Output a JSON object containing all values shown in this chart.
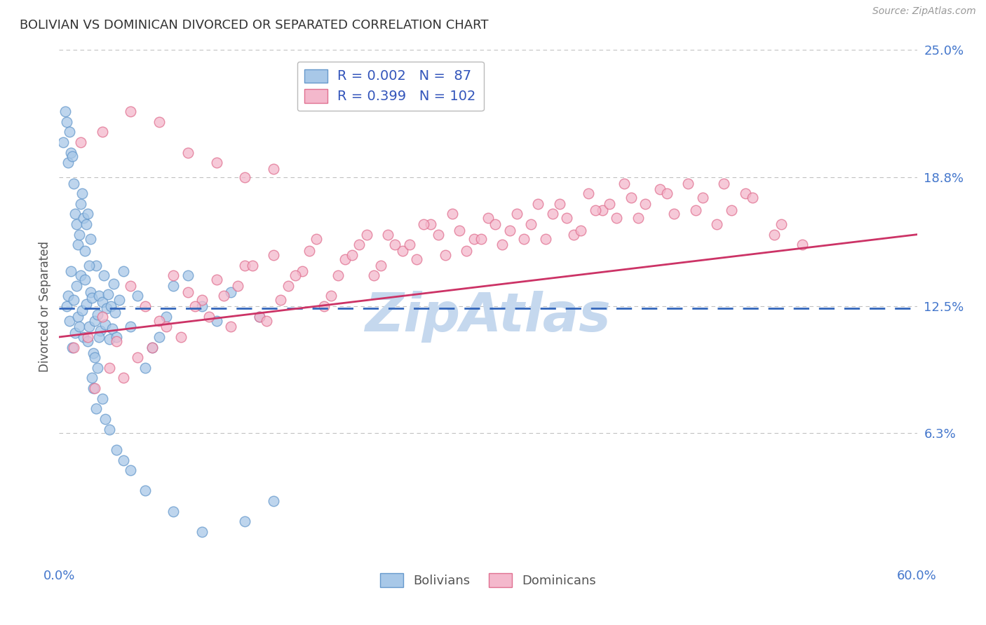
{
  "title": "BOLIVIAN VS DOMINICAN DIVORCED OR SEPARATED CORRELATION CHART",
  "source": "Source: ZipAtlas.com",
  "ylabel": "Divorced or Separated",
  "x_min": 0.0,
  "x_max": 60.0,
  "y_min": 0.0,
  "y_max": 25.0,
  "y_ticks": [
    6.3,
    12.5,
    18.8,
    25.0
  ],
  "bolivian_R": 0.002,
  "bolivian_N": 87,
  "dominican_R": 0.399,
  "dominican_N": 102,
  "blue_fill": "#a8c8e8",
  "blue_edge": "#6699cc",
  "blue_line": "#3366bb",
  "pink_fill": "#f4b8cc",
  "pink_edge": "#e07090",
  "pink_line": "#cc3366",
  "legend_text_color": "#3355bb",
  "title_color": "#333333",
  "axis_label_color": "#555555",
  "tick_color": "#4477cc",
  "grid_color": "#bbbbbb",
  "watermark_color": "#c5d8ee",
  "background_color": "#ffffff",
  "bol_x": [
    0.5,
    0.6,
    0.7,
    0.8,
    0.9,
    1.0,
    1.1,
    1.2,
    1.3,
    1.4,
    1.5,
    1.6,
    1.7,
    1.8,
    1.9,
    2.0,
    2.1,
    2.2,
    2.3,
    2.4,
    2.5,
    2.6,
    2.7,
    2.8,
    2.9,
    3.0,
    3.1,
    3.2,
    3.3,
    3.4,
    3.5,
    3.6,
    3.7,
    3.8,
    3.9,
    4.0,
    4.2,
    4.5,
    5.0,
    5.5,
    6.0,
    6.5,
    7.0,
    7.5,
    8.0,
    9.0,
    10.0,
    11.0,
    12.0,
    14.0,
    0.3,
    0.4,
    0.5,
    0.6,
    0.7,
    0.8,
    0.9,
    1.0,
    1.1,
    1.2,
    1.3,
    1.4,
    1.5,
    1.6,
    1.7,
    1.8,
    1.9,
    2.0,
    2.1,
    2.2,
    2.3,
    2.4,
    2.5,
    2.6,
    2.7,
    2.8,
    3.0,
    3.2,
    3.5,
    4.0,
    4.5,
    5.0,
    6.0,
    8.0,
    10.0,
    13.0,
    15.0
  ],
  "bol_y": [
    12.5,
    13.0,
    11.8,
    14.2,
    10.5,
    12.8,
    11.2,
    13.5,
    12.0,
    11.5,
    14.0,
    12.3,
    11.0,
    13.8,
    12.6,
    10.8,
    11.5,
    13.2,
    12.9,
    10.2,
    11.8,
    14.5,
    12.1,
    13.0,
    11.3,
    12.7,
    14.0,
    11.6,
    12.4,
    13.1,
    10.9,
    12.5,
    11.4,
    13.6,
    12.2,
    11.0,
    12.8,
    14.2,
    11.5,
    13.0,
    9.5,
    10.5,
    11.0,
    12.0,
    13.5,
    14.0,
    12.5,
    11.8,
    13.2,
    12.0,
    20.5,
    22.0,
    21.5,
    19.5,
    21.0,
    20.0,
    19.8,
    18.5,
    17.0,
    16.5,
    15.5,
    16.0,
    17.5,
    18.0,
    16.8,
    15.2,
    16.5,
    17.0,
    14.5,
    15.8,
    9.0,
    8.5,
    10.0,
    7.5,
    9.5,
    11.0,
    8.0,
    7.0,
    6.5,
    5.5,
    5.0,
    4.5,
    3.5,
    2.5,
    1.5,
    2.0,
    3.0
  ],
  "dom_x": [
    1.0,
    2.0,
    3.0,
    4.0,
    5.0,
    6.0,
    7.0,
    8.0,
    9.0,
    10.0,
    11.0,
    12.0,
    13.0,
    14.0,
    15.0,
    16.0,
    17.0,
    18.0,
    19.0,
    20.0,
    21.0,
    22.0,
    23.0,
    24.0,
    25.0,
    26.0,
    27.0,
    28.0,
    29.0,
    30.0,
    31.0,
    32.0,
    33.0,
    34.0,
    35.0,
    36.0,
    37.0,
    38.0,
    39.0,
    40.0,
    41.0,
    42.0,
    43.0,
    44.0,
    45.0,
    46.0,
    47.0,
    48.0,
    50.0,
    52.0,
    3.5,
    5.5,
    7.5,
    9.5,
    11.5,
    13.5,
    15.5,
    17.5,
    19.5,
    21.5,
    23.5,
    25.5,
    27.5,
    29.5,
    31.5,
    33.5,
    35.5,
    37.5,
    39.5,
    2.5,
    4.5,
    6.5,
    8.5,
    10.5,
    12.5,
    14.5,
    16.5,
    18.5,
    20.5,
    22.5,
    24.5,
    26.5,
    28.5,
    30.5,
    32.5,
    34.5,
    36.5,
    38.5,
    40.5,
    42.5,
    44.5,
    46.5,
    48.5,
    50.5,
    1.5,
    3.0,
    5.0,
    7.0,
    9.0,
    11.0,
    13.0,
    15.0
  ],
  "dom_y": [
    10.5,
    11.0,
    12.0,
    10.8,
    13.5,
    12.5,
    11.8,
    14.0,
    13.2,
    12.8,
    13.8,
    11.5,
    14.5,
    12.0,
    15.0,
    13.5,
    14.2,
    15.8,
    13.0,
    14.8,
    15.5,
    14.0,
    16.0,
    15.2,
    14.8,
    16.5,
    15.0,
    16.2,
    15.8,
    16.8,
    15.5,
    17.0,
    16.5,
    15.8,
    17.5,
    16.0,
    18.0,
    17.2,
    16.8,
    17.8,
    17.5,
    18.2,
    17.0,
    18.5,
    17.8,
    16.5,
    17.2,
    18.0,
    16.0,
    15.5,
    9.5,
    10.0,
    11.5,
    12.5,
    13.0,
    14.5,
    12.8,
    15.2,
    14.0,
    16.0,
    15.5,
    16.5,
    17.0,
    15.8,
    16.2,
    17.5,
    16.8,
    17.2,
    18.5,
    8.5,
    9.0,
    10.5,
    11.0,
    12.0,
    13.5,
    11.8,
    14.0,
    12.5,
    15.0,
    14.5,
    15.5,
    16.0,
    15.2,
    16.5,
    15.8,
    17.0,
    16.2,
    17.5,
    16.8,
    18.0,
    17.2,
    18.5,
    17.8,
    16.5,
    20.5,
    21.0,
    22.0,
    21.5,
    20.0,
    19.5,
    18.8,
    19.2
  ]
}
